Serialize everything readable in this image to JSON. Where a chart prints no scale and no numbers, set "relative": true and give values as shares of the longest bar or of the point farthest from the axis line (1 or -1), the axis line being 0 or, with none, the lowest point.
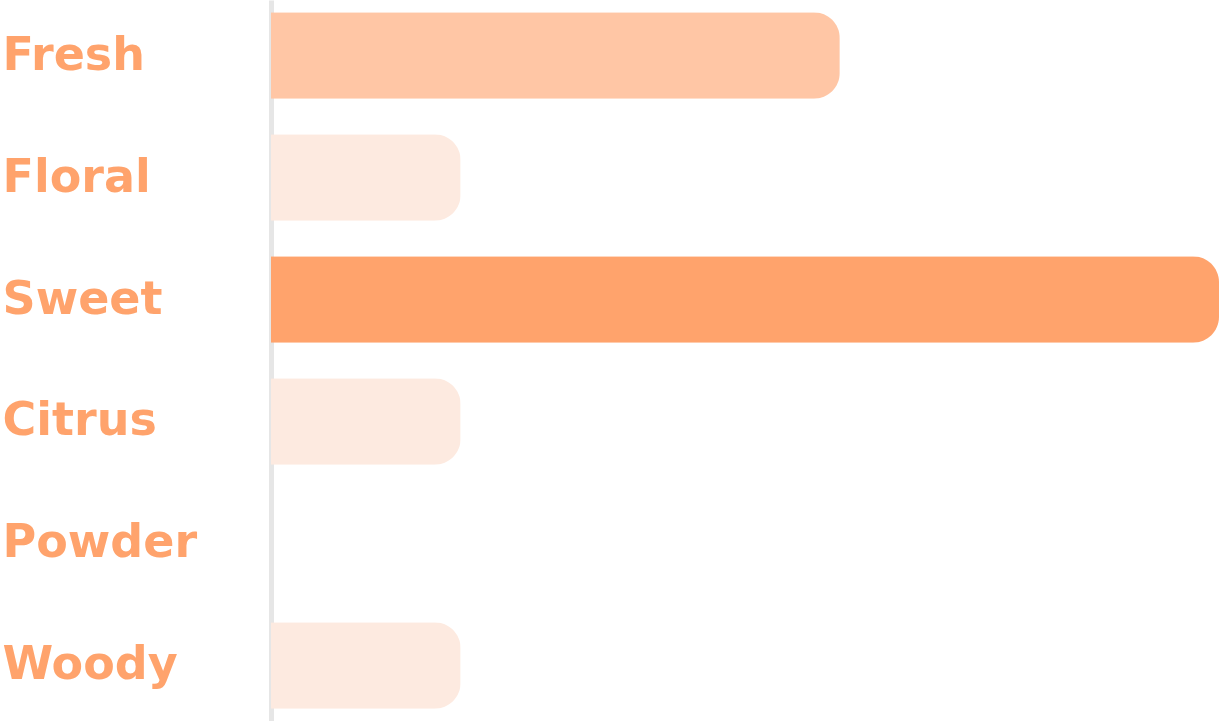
{
  "chart_data": {
    "type": "bar",
    "orientation": "horizontal",
    "relative": true,
    "categories": [
      "Fresh",
      "Floral",
      "Sweet",
      "Citrus",
      "Powder",
      "Woody"
    ],
    "values": [
      0.6,
      0.2,
      1,
      0.2,
      0,
      0.2
    ],
    "colors": [
      "#ffc6a5",
      "#fdeae0",
      "#ffa36c",
      "#fdeae0",
      "#fdeae0",
      "#fdeae0"
    ]
  }
}
